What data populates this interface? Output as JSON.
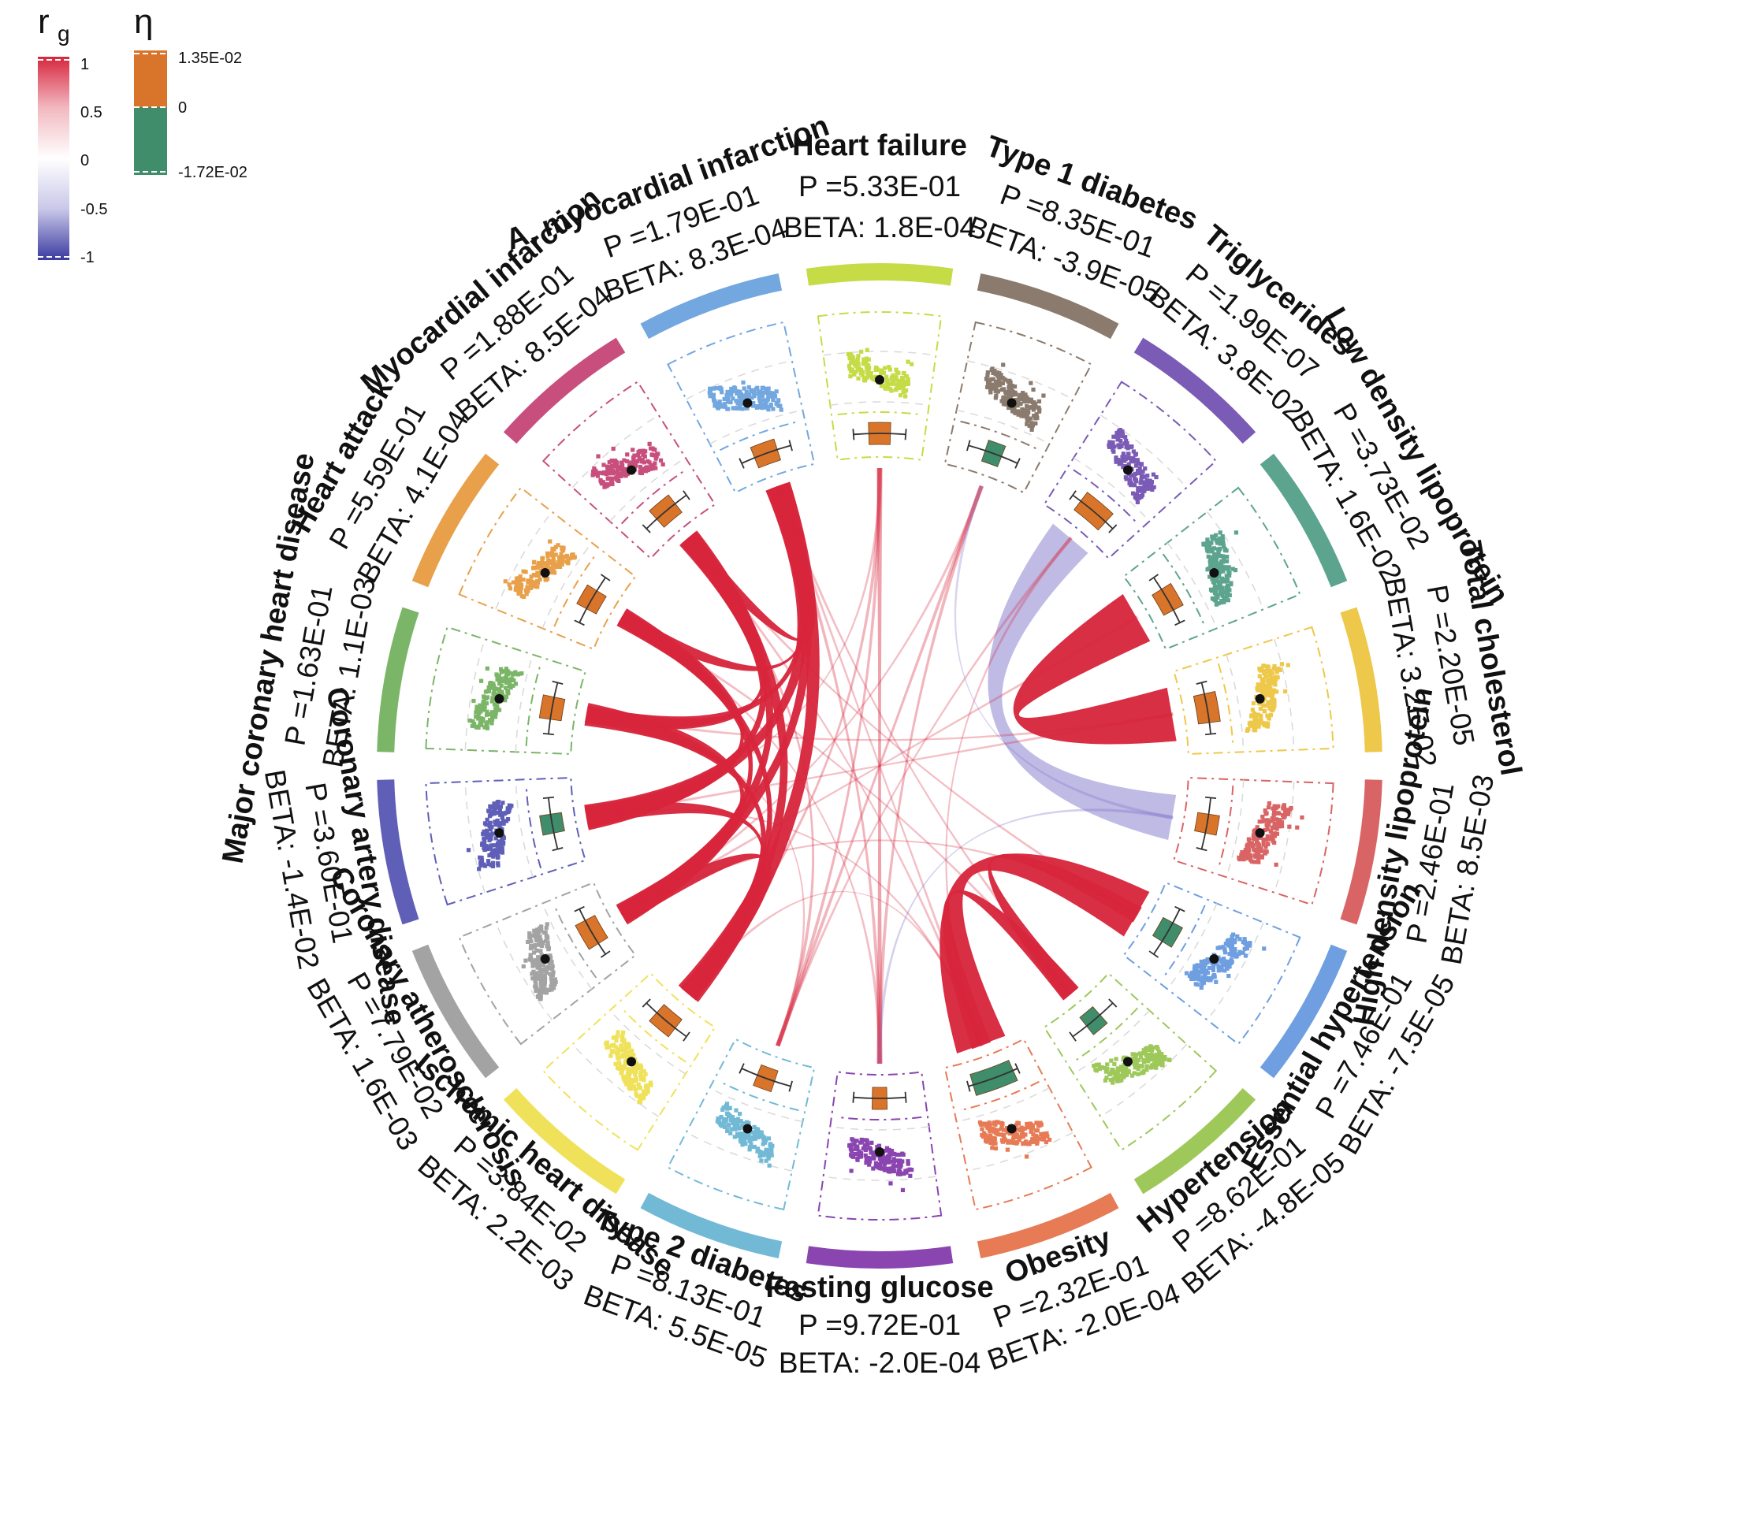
{
  "legend": {
    "rg": {
      "title": "r",
      "title_sub": "g",
      "ticks": [
        "1",
        "0.5",
        "0",
        "-0.5",
        "-1"
      ],
      "colors": [
        "#d7263d",
        "#f2b8c0",
        "#ffffff",
        "#c9c7e8",
        "#3a3aa0"
      ]
    },
    "eta": {
      "title": "η",
      "ticks": [
        "1.35E-02",
        "0",
        "-1.72E-02"
      ],
      "colors": [
        "#d9742b",
        "#3f8d6a"
      ]
    }
  },
  "traits": [
    {
      "name": "Heart failure",
      "beta": "BETA: 1.8E-04",
      "p": "P =5.33E-01",
      "color": "#c5dc47",
      "eta": 0.0045,
      "points": 150
    },
    {
      "name": "Type 1 diabetes",
      "beta": "BETA: -3.9E-05",
      "p": "P =8.35E-01",
      "color": "#8b7b6e",
      "eta": -0.002,
      "points": 180
    },
    {
      "name": "Triglycerides",
      "beta": "BETA: 3.8E-02",
      "p": "P =1.99E-07",
      "color": "#7a5bb5",
      "eta": 0.011,
      "points": 170
    },
    {
      "name": "Low density lipoprotein",
      "beta": "BETA: 1.6E-02",
      "p": "P =3.73E-02",
      "color": "#5da48f",
      "eta": 0.006,
      "points": 180
    },
    {
      "name": "Total cholesterol",
      "beta": "BETA: 3.2E-02",
      "p": "P =2.20E-05",
      "color": "#edc84a",
      "eta": 0.009,
      "points": 170
    },
    {
      "name": "High density lipoprotein",
      "beta": "BETA: 8.5E-03",
      "p": "P =2.46E-01",
      "color": "#d96465",
      "eta": 0.003,
      "points": 180
    },
    {
      "name": "Essential hypertension",
      "beta": "BETA: -7.5E-05",
      "p": "P =7.46E-01",
      "color": "#6f9fe0",
      "eta": -0.0045,
      "points": 160
    },
    {
      "name": "Hypertension",
      "beta": "BETA: -4.8E-05",
      "p": "P =8.62E-01",
      "color": "#9ec85a",
      "eta": -0.002,
      "points": 160
    },
    {
      "name": "Obesity",
      "beta": "BETA: -2.0E-04",
      "p": "P =2.32E-01",
      "color": "#e67b55",
      "eta": -0.017,
      "points": 170
    },
    {
      "name": "Fasting glucose",
      "beta": "BETA: -2.0E-04",
      "p": "P =9.72E-01",
      "color": "#8a45b0",
      "eta": 0.0003,
      "points": 150
    },
    {
      "name": "Type 2 diabetes",
      "beta": "BETA: 5.5E-05",
      "p": "P =8.13E-01",
      "color": "#72b9d6",
      "eta": 0.0025,
      "points": 150
    },
    {
      "name": "Ischemic heart disease",
      "beta": "BETA: 2.2E-03",
      "p": "P =3.84E-02",
      "color": "#efe25a",
      "eta": 0.006,
      "points": 170
    },
    {
      "name": "Coronary atherosclerosis",
      "beta": "BETA: 1.6E-03",
      "p": "P =7.79E-02",
      "color": "#a3a3a3",
      "eta": 0.0075,
      "points": 170
    },
    {
      "name": "Coronary artery disease",
      "beta": "BETA: -1.4E-02",
      "p": "P =3.60E-01",
      "color": "#5f5fb8",
      "eta": -0.003,
      "points": 150
    },
    {
      "name": "Major coronary heart disease",
      "beta": "BETA: 1.1E-03",
      "p": "P =1.63E-01",
      "color": "#7bb567",
      "eta": 0.005,
      "points": 150
    },
    {
      "name": "Heart attack",
      "beta": "BETA: 4.1E-04",
      "p": "P =5.59E-01",
      "color": "#e8a14a",
      "eta": 0.004,
      "points": 150
    },
    {
      "name": "Myocardial infarction",
      "beta": "BETA: 8.5E-04",
      "p": "P =1.88E-01",
      "color": "#c84f7d",
      "eta": 0.006,
      "points": 160
    },
    {
      "name": "A. myocardial infarction",
      "beta": "BETA: 8.3E-04",
      "p": "P =1.79E-01",
      "color": "#73a7df",
      "eta": 0.006,
      "points": 150
    }
  ],
  "links": [
    {
      "from": 16,
      "to": 13,
      "rg": 0.95,
      "w": 0.4
    },
    {
      "from": 16,
      "to": 12,
      "rg": 0.95,
      "w": 0.35
    },
    {
      "from": 17,
      "to": 13,
      "rg": 0.95,
      "w": 0.45
    },
    {
      "from": 17,
      "to": 12,
      "rg": 0.95,
      "w": 0.35
    },
    {
      "from": 17,
      "to": 11,
      "rg": 0.95,
      "w": 0.45
    },
    {
      "from": 16,
      "to": 11,
      "rg": 0.95,
      "w": 0.35
    },
    {
      "from": 15,
      "to": 13,
      "rg": 0.95,
      "w": 0.35
    },
    {
      "from": 15,
      "to": 12,
      "rg": 0.95,
      "w": 0.3
    },
    {
      "from": 14,
      "to": 12,
      "rg": 0.95,
      "w": 0.4
    },
    {
      "from": 14,
      "to": 11,
      "rg": 0.95,
      "w": 0.3
    },
    {
      "from": 14,
      "to": 16,
      "rg": 0.95,
      "w": 0.3
    },
    {
      "from": 14,
      "to": 17,
      "rg": 0.95,
      "w": 0.3
    },
    {
      "from": 15,
      "to": 17,
      "rg": 0.95,
      "w": 0.25
    },
    {
      "from": 16,
      "to": 17,
      "rg": 0.95,
      "w": 0.25
    },
    {
      "from": 11,
      "to": 12,
      "rg": 0.95,
      "w": 0.35
    },
    {
      "from": 13,
      "to": 11,
      "rg": 0.95,
      "w": 0.3
    },
    {
      "from": 15,
      "to": 11,
      "rg": 0.95,
      "w": 0.25
    },
    {
      "from": 6,
      "to": 8,
      "rg": 0.95,
      "w": 0.9
    },
    {
      "from": 7,
      "to": 8,
      "rg": 0.95,
      "w": 0.35
    },
    {
      "from": 6,
      "to": 7,
      "rg": 0.95,
      "w": 0.3
    },
    {
      "from": 3,
      "to": 4,
      "rg": 0.95,
      "w": 0.95
    },
    {
      "from": 2,
      "to": 5,
      "rg": -0.45,
      "w": 0.8
    },
    {
      "from": 0,
      "to": 9,
      "rg": 0.35,
      "w": 0.1
    },
    {
      "from": 0,
      "to": 10,
      "rg": 0.25,
      "w": 0.08
    },
    {
      "from": 0,
      "to": 11,
      "rg": 0.25,
      "w": 0.08
    },
    {
      "from": 0,
      "to": 13,
      "rg": 0.2,
      "w": 0.06
    },
    {
      "from": 1,
      "to": 10,
      "rg": 0.25,
      "w": 0.08
    },
    {
      "from": 1,
      "to": 9,
      "rg": 0.25,
      "w": 0.08
    },
    {
      "from": 1,
      "to": 12,
      "rg": 0.2,
      "w": 0.06
    },
    {
      "from": 9,
      "to": 17,
      "rg": 0.25,
      "w": 0.08
    },
    {
      "from": 9,
      "to": 15,
      "rg": 0.2,
      "w": 0.06
    },
    {
      "from": 10,
      "to": 16,
      "rg": 0.25,
      "w": 0.08
    },
    {
      "from": 10,
      "to": 14,
      "rg": 0.2,
      "w": 0.06
    },
    {
      "from": 8,
      "to": 16,
      "rg": 0.2,
      "w": 0.06
    },
    {
      "from": 8,
      "to": 13,
      "rg": 0.2,
      "w": 0.06
    },
    {
      "from": 8,
      "to": 11,
      "rg": 0.2,
      "w": 0.06
    },
    {
      "from": 8,
      "to": 17,
      "rg": 0.2,
      "w": 0.06
    },
    {
      "from": 7,
      "to": 15,
      "rg": 0.2,
      "w": 0.06
    },
    {
      "from": 4,
      "to": 13,
      "rg": 0.2,
      "w": 0.06
    },
    {
      "from": 4,
      "to": 14,
      "rg": 0.2,
      "w": 0.06
    },
    {
      "from": 3,
      "to": 12,
      "rg": 0.2,
      "w": 0.06
    },
    {
      "from": 2,
      "to": 10,
      "rg": 0.2,
      "w": 0.06
    },
    {
      "from": 2,
      "to": 8,
      "rg": 0.2,
      "w": 0.06
    },
    {
      "from": 5,
      "to": 9,
      "rg": -0.2,
      "w": 0.06
    },
    {
      "from": 5,
      "to": 1,
      "rg": -0.15,
      "w": 0.06
    },
    {
      "from": 6,
      "to": 16,
      "rg": 0.2,
      "w": 0.06
    },
    {
      "from": 6,
      "to": 12,
      "rg": 0.2,
      "w": 0.06
    },
    {
      "from": 7,
      "to": 17,
      "rg": 0.2,
      "w": 0.06
    }
  ]
}
